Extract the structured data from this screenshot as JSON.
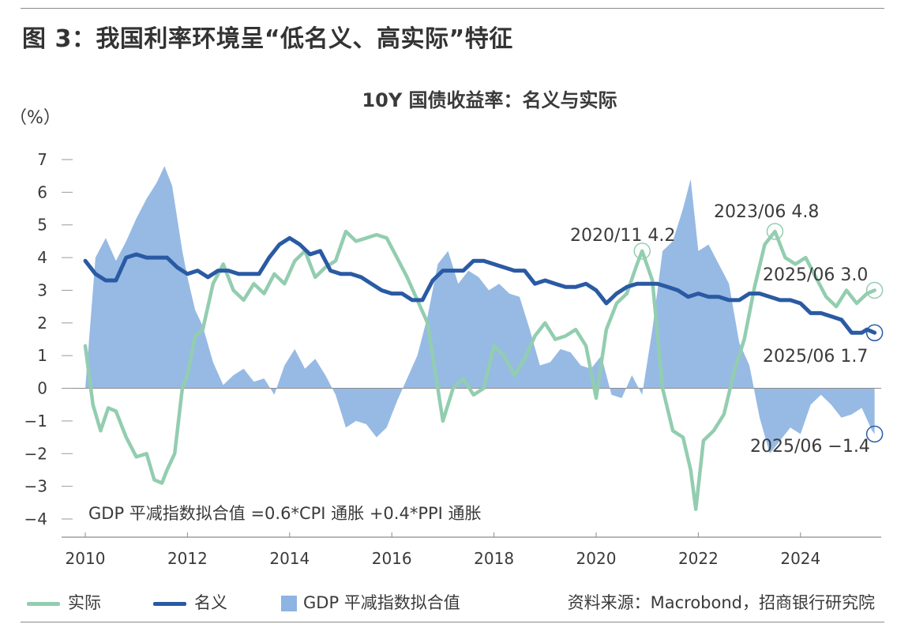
{
  "figure_title": "图 3：我国利率环境呈“低名义、高实际”特征",
  "chart_data": {
    "type": "line",
    "title": "10Y 国债收益率：名义与实际",
    "ylabel": "（%）",
    "xlabel": "",
    "ylim": [
      -4,
      7
    ],
    "xlim": [
      2010,
      2025.8
    ],
    "yticks": [
      "7",
      "6",
      "5",
      "4",
      "3",
      "2",
      "1",
      "0",
      "−1",
      "−2",
      "−3",
      "−4"
    ],
    "xticks": [
      "2010",
      "2012",
      "2014",
      "2016",
      "2018",
      "2020",
      "2022",
      "2024"
    ],
    "grid": false,
    "formula_note": "GDP 平减指数拟合值 =0.6*CPI 通胀 +0.4*PPI 通胀",
    "colors": {
      "real": "#93cdb0",
      "nominal": "#2a5aa3",
      "deflator": "#8db4e2"
    },
    "series": [
      {
        "name": "GDP 平减指数拟合值",
        "kind": "area",
        "x": [
          2010.0,
          2010.2,
          2010.4,
          2010.6,
          2010.8,
          2011.0,
          2011.2,
          2011.4,
          2011.55,
          2011.7,
          2011.9,
          2012.0,
          2012.15,
          2012.3,
          2012.5,
          2012.7,
          2012.9,
          2013.1,
          2013.3,
          2013.5,
          2013.7,
          2013.9,
          2014.1,
          2014.3,
          2014.5,
          2014.7,
          2014.9,
          2015.1,
          2015.3,
          2015.5,
          2015.7,
          2015.9,
          2016.1,
          2016.3,
          2016.5,
          2016.7,
          2016.9,
          2017.1,
          2017.3,
          2017.5,
          2017.7,
          2017.9,
          2018.1,
          2018.3,
          2018.5,
          2018.7,
          2018.9,
          2019.1,
          2019.3,
          2019.5,
          2019.7,
          2019.9,
          2020.1,
          2020.3,
          2020.5,
          2020.7,
          2020.9,
          2021.1,
          2021.3,
          2021.5,
          2021.7,
          2021.85,
          2022.0,
          2022.2,
          2022.4,
          2022.6,
          2022.8,
          2023.0,
          2023.2,
          2023.4,
          2023.6,
          2023.8,
          2024.0,
          2024.2,
          2024.4,
          2024.6,
          2024.8,
          2025.0,
          2025.2,
          2025.4,
          2025.45
        ],
        "values": [
          0.0,
          4.0,
          4.6,
          3.9,
          4.5,
          5.2,
          5.8,
          6.3,
          6.8,
          6.2,
          4.2,
          3.4,
          2.4,
          1.9,
          0.8,
          0.1,
          0.4,
          0.6,
          0.2,
          0.3,
          -0.2,
          0.7,
          1.2,
          0.6,
          0.9,
          0.4,
          -0.2,
          -1.2,
          -1.0,
          -1.1,
          -1.5,
          -1.2,
          -0.4,
          0.3,
          1.0,
          2.2,
          3.8,
          4.2,
          3.2,
          3.6,
          3.4,
          3.0,
          3.2,
          2.9,
          2.8,
          1.8,
          0.7,
          0.8,
          1.2,
          1.1,
          0.7,
          0.6,
          1.0,
          -0.2,
          -0.3,
          0.4,
          -0.2,
          1.8,
          4.2,
          4.5,
          5.5,
          6.4,
          4.2,
          4.4,
          3.8,
          3.2,
          1.4,
          0.7,
          -0.9,
          -2.0,
          -1.6,
          -1.2,
          -1.4,
          -0.5,
          -0.2,
          -0.5,
          -0.9,
          -0.8,
          -0.6,
          -1.3,
          -1.4
        ]
      },
      {
        "name": "实际",
        "kind": "line",
        "x": [
          2010.0,
          2010.15,
          2010.3,
          2010.45,
          2010.6,
          2010.8,
          2011.0,
          2011.2,
          2011.35,
          2011.5,
          2011.6,
          2011.75,
          2011.9,
          2012.0,
          2012.15,
          2012.3,
          2012.5,
          2012.7,
          2012.9,
          2013.1,
          2013.3,
          2013.5,
          2013.7,
          2013.9,
          2014.1,
          2014.3,
          2014.5,
          2014.7,
          2014.9,
          2015.1,
          2015.3,
          2015.5,
          2015.7,
          2015.9,
          2016.1,
          2016.3,
          2016.5,
          2016.7,
          2016.85,
          2017.0,
          2017.2,
          2017.4,
          2017.6,
          2017.8,
          2018.0,
          2018.2,
          2018.4,
          2018.6,
          2018.8,
          2019.0,
          2019.2,
          2019.4,
          2019.6,
          2019.8,
          2020.0,
          2020.2,
          2020.4,
          2020.6,
          2020.8,
          2020.9,
          2021.1,
          2021.3,
          2021.5,
          2021.7,
          2021.85,
          2021.95,
          2022.1,
          2022.3,
          2022.5,
          2022.7,
          2022.9,
          2023.1,
          2023.3,
          2023.5,
          2023.7,
          2023.9,
          2024.1,
          2024.3,
          2024.5,
          2024.7,
          2024.9,
          2025.1,
          2025.3,
          2025.45
        ],
        "values": [
          1.3,
          -0.5,
          -1.3,
          -0.6,
          -0.7,
          -1.5,
          -2.1,
          -2.0,
          -2.8,
          -2.9,
          -2.5,
          -2.0,
          0.0,
          0.4,
          1.6,
          1.8,
          3.2,
          3.8,
          3.0,
          2.7,
          3.2,
          2.9,
          3.5,
          3.2,
          3.9,
          4.2,
          3.4,
          3.7,
          3.9,
          4.8,
          4.5,
          4.6,
          4.7,
          4.6,
          4.0,
          3.4,
          2.7,
          2.0,
          0.5,
          -1.0,
          0.0,
          0.3,
          -0.2,
          0.0,
          1.3,
          1.0,
          0.4,
          0.9,
          1.6,
          2.0,
          1.5,
          1.6,
          1.8,
          1.3,
          -0.3,
          1.8,
          2.6,
          2.9,
          3.8,
          4.2,
          3.3,
          0.0,
          -1.3,
          -1.5,
          -2.5,
          -3.7,
          -1.6,
          -1.3,
          -0.8,
          0.5,
          1.5,
          3.1,
          4.4,
          4.8,
          4.0,
          3.8,
          4.0,
          3.4,
          2.8,
          2.5,
          3.0,
          2.6,
          2.9,
          3.0
        ]
      },
      {
        "name": "名义",
        "kind": "line",
        "x": [
          2010.0,
          2010.2,
          2010.4,
          2010.6,
          2010.8,
          2011.0,
          2011.2,
          2011.4,
          2011.6,
          2011.8,
          2012.0,
          2012.2,
          2012.4,
          2012.6,
          2012.8,
          2013.0,
          2013.2,
          2013.4,
          2013.6,
          2013.8,
          2014.0,
          2014.2,
          2014.4,
          2014.6,
          2014.8,
          2015.0,
          2015.2,
          2015.4,
          2015.6,
          2015.8,
          2016.0,
          2016.2,
          2016.4,
          2016.6,
          2016.8,
          2017.0,
          2017.2,
          2017.4,
          2017.6,
          2017.8,
          2018.0,
          2018.2,
          2018.4,
          2018.6,
          2018.8,
          2019.0,
          2019.2,
          2019.4,
          2019.6,
          2019.8,
          2020.0,
          2020.2,
          2020.4,
          2020.6,
          2020.8,
          2021.0,
          2021.2,
          2021.4,
          2021.6,
          2021.8,
          2022.0,
          2022.2,
          2022.4,
          2022.6,
          2022.8,
          2023.0,
          2023.2,
          2023.4,
          2023.6,
          2023.8,
          2024.0,
          2024.2,
          2024.4,
          2024.6,
          2024.8,
          2025.0,
          2025.2,
          2025.3,
          2025.45
        ],
        "values": [
          3.9,
          3.5,
          3.3,
          3.3,
          4.0,
          4.1,
          4.0,
          4.0,
          4.0,
          3.7,
          3.5,
          3.6,
          3.4,
          3.6,
          3.6,
          3.5,
          3.5,
          3.5,
          4.0,
          4.4,
          4.6,
          4.4,
          4.1,
          4.2,
          3.6,
          3.5,
          3.5,
          3.4,
          3.2,
          3.0,
          2.9,
          2.9,
          2.7,
          2.7,
          3.3,
          3.6,
          3.6,
          3.6,
          3.9,
          3.9,
          3.8,
          3.7,
          3.6,
          3.6,
          3.2,
          3.3,
          3.2,
          3.1,
          3.1,
          3.2,
          3.0,
          2.6,
          2.9,
          3.1,
          3.2,
          3.2,
          3.2,
          3.1,
          3.0,
          2.8,
          2.9,
          2.8,
          2.8,
          2.7,
          2.7,
          2.9,
          2.9,
          2.8,
          2.7,
          2.7,
          2.6,
          2.3,
          2.3,
          2.2,
          2.1,
          1.7,
          1.7,
          1.8,
          1.7
        ]
      }
    ],
    "annotations": [
      {
        "series": "实际",
        "x": 2020.9,
        "y": 4.2,
        "text": "2020/11  4.2"
      },
      {
        "series": "实际",
        "x": 2023.5,
        "y": 4.8,
        "text": "2023/06  4.8"
      },
      {
        "series": "实际",
        "x": 2025.45,
        "y": 3.0,
        "text": "2025/06  3.0"
      },
      {
        "series": "名义",
        "x": 2025.45,
        "y": 1.7,
        "text": "2025/06  1.7"
      },
      {
        "series": "GDP 平减指数拟合值",
        "x": 2025.45,
        "y": -1.4,
        "text": "2025/06  −1.4"
      }
    ],
    "legend": [
      "实际",
      "名义",
      "GDP 平减指数拟合值"
    ],
    "legend_placement": "bottom"
  },
  "source_note": "资料来源：Macrobond，招商银行研究院"
}
